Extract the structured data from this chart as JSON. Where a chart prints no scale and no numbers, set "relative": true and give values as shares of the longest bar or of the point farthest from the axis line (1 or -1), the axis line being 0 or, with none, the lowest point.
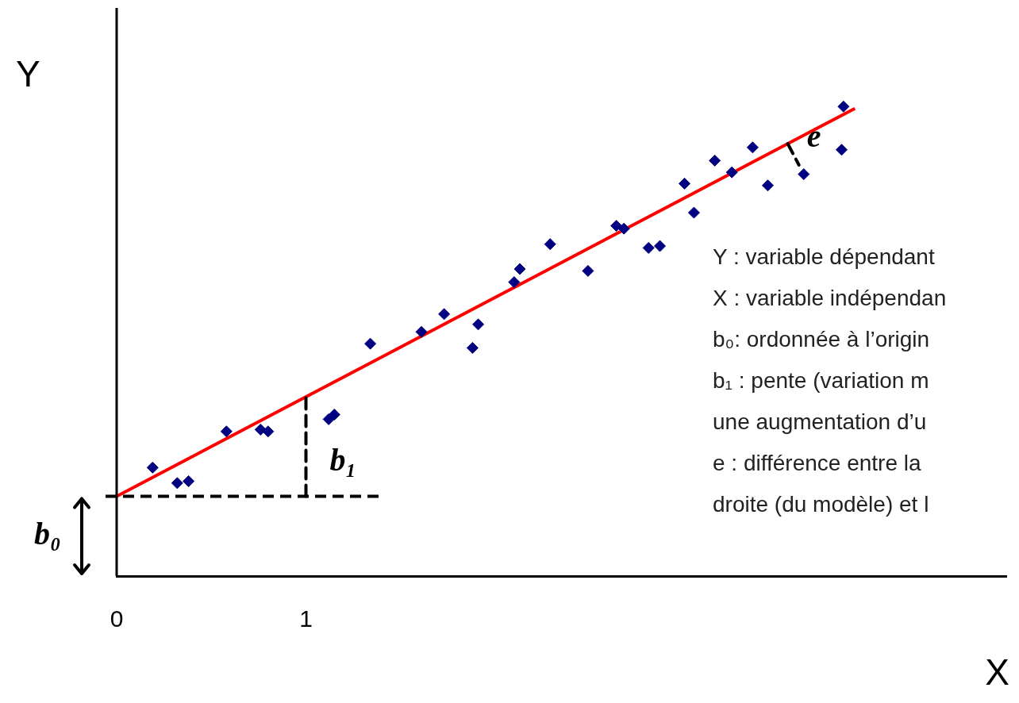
{
  "chart_data": {
    "type": "scatter",
    "xlabel": "X",
    "ylabel": "Y",
    "relative": true,
    "xlim": [
      0,
      4.7
    ],
    "xticks": [
      0,
      1
    ],
    "grid": false,
    "legend": false,
    "ref_lines": [
      {
        "axis": "y",
        "value": 0.17,
        "line_style": "dashed",
        "color": "#000000"
      },
      {
        "axis": "x",
        "value": 1,
        "label": "b₁",
        "line_style": "dashed",
        "color": "#000000"
      }
    ],
    "annotations": [
      "b₀",
      "Y : variable dépendant",
      "X : variable indépendan",
      "b₀: ordonnée à l’origin",
      "b₁ : pente (variation m",
      "une augmentation d’u",
      "e : différence entre la",
      "droite (du modèle) et l",
      {
        "text": "e",
        "x": 3.63,
        "y": 0.856
      }
    ],
    "series": [
      {
        "type": "scatter",
        "color": "#000080",
        "marker": "diamond",
        "x": [
          0.19,
          0.32,
          0.38,
          0.58,
          0.76,
          0.8,
          1.12,
          1.15,
          1.34,
          1.61,
          1.73,
          1.88,
          1.91,
          2.1,
          2.13,
          2.29,
          2.49,
          2.64,
          2.68,
          2.81,
          2.87,
          3.0,
          3.05,
          3.16,
          3.25,
          3.36,
          3.44,
          3.63,
          3.83,
          3.84
        ],
        "values": [
          0.231,
          0.198,
          0.202,
          0.308,
          0.312,
          0.308,
          0.334,
          0.344,
          0.495,
          0.52,
          0.558,
          0.486,
          0.536,
          0.626,
          0.654,
          0.707,
          0.65,
          0.746,
          0.74,
          0.699,
          0.703,
          0.836,
          0.774,
          0.885,
          0.86,
          0.913,
          0.832,
          0.856,
          0.908,
          1.0
        ]
      },
      {
        "type": "line",
        "color": "#ff0000",
        "marker": "none",
        "line_style": "solid",
        "x": [
          0,
          3.9
        ],
        "values": [
          0.17,
          0.996
        ]
      }
    ]
  }
}
